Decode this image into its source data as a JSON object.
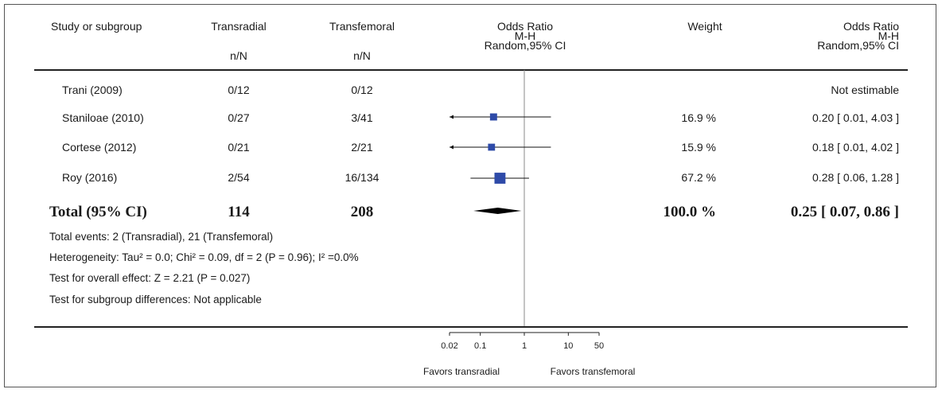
{
  "header": {
    "study": "Study or subgroup",
    "group1": "Transradial",
    "group2": "Transfemoral",
    "n_label": "n/N",
    "or_title": "Odds Ratio",
    "or_method": "M-H",
    "or_model": "Random,95% CI",
    "weight": "Weight",
    "or2_title": "Odds Ratio",
    "or2_method": "M-H",
    "or2_model": "Random,95% CI"
  },
  "studies": [
    {
      "name": "Trani (2009)",
      "tr": "0/12",
      "tf": "0/12",
      "weight": "",
      "ci_text": "Not estimable"
    },
    {
      "name": "Staniloae (2010)",
      "tr": "0/27",
      "tf": "3/41",
      "weight": "16.9 %",
      "ci_text": "0.20 [ 0.01, 4.03 ]"
    },
    {
      "name": "Cortese (2012)",
      "tr": "0/21",
      "tf": "2/21",
      "weight": "15.9 %",
      "ci_text": "0.18 [ 0.01, 4.02 ]"
    },
    {
      "name": "Roy (2016)",
      "tr": "2/54",
      "tf": "16/134",
      "weight": "67.2 %",
      "ci_text": "0.28 [ 0.06, 1.28 ]"
    }
  ],
  "total": {
    "label": "Total (95% CI)",
    "tr": "114",
    "tf": "208",
    "weight": "100.0 %",
    "ci_text": "0.25 [ 0.07, 0.86 ]"
  },
  "footnotes": {
    "events": "Total events: 2 (Transradial), 21 (Transfemoral)",
    "heterogeneity": "Heterogeneity: Tau² = 0.0; Chi² = 0.09, df = 2 (P = 0.96); I² =0.0%",
    "overall": "Test for overall effect: Z = 2.21 (P = 0.027)",
    "subgroup": "Test for subgroup differences: Not applicable"
  },
  "axis": {
    "ticks": [
      "0.02",
      "0.1",
      "1",
      "10",
      "50"
    ],
    "favors_left": "Favors transradial",
    "favors_right": "Favors transfemoral"
  },
  "chart_data": {
    "type": "forest",
    "scale": "log",
    "xlim": [
      0.02,
      50
    ],
    "reference_line": 1,
    "tick_values": [
      0.02,
      0.1,
      1,
      10,
      50
    ],
    "studies": [
      {
        "name": "Trani (2009)",
        "estimable": false
      },
      {
        "name": "Staniloae (2010)",
        "or": 0.2,
        "lower": 0.01,
        "upper": 4.03,
        "weight": 16.9
      },
      {
        "name": "Cortese (2012)",
        "or": 0.18,
        "lower": 0.01,
        "upper": 4.02,
        "weight": 15.9
      },
      {
        "name": "Roy (2016)",
        "or": 0.28,
        "lower": 0.06,
        "upper": 1.28,
        "weight": 67.2
      }
    ],
    "pooled": {
      "or": 0.25,
      "lower": 0.07,
      "upper": 0.86,
      "weight": 100.0
    },
    "colors": {
      "marker": "#2e4aa8",
      "line": "#111111",
      "diamond": "#000000"
    }
  }
}
